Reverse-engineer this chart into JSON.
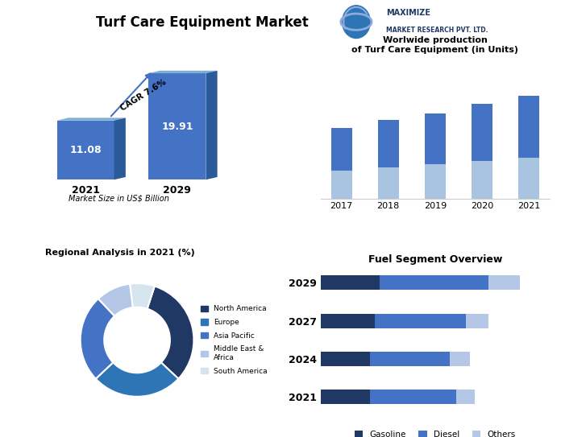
{
  "title": "Turf Care Equipment Market",
  "bg_color": "#ffffff",
  "bar_chart": {
    "categories": [
      "2021",
      "2029"
    ],
    "values": [
      11.08,
      19.91
    ],
    "color": "#4472c4",
    "shadow_color": "#8faadc",
    "xlabel": "Market Size in US$ Billion",
    "cagr_text": "CAGR 7.6%"
  },
  "world_prod": {
    "title": "Worlwide production\nof Turf Care Equipment (in Units)",
    "categories": [
      "2017",
      "2018",
      "2019",
      "2020",
      "2021"
    ],
    "values": [
      0.52,
      0.58,
      0.63,
      0.7,
      0.76
    ],
    "color_top": "#4472c4",
    "color_bottom": "#a8c4e0"
  },
  "donut": {
    "title": "Regional Analysis in 2021 (%)",
    "labels": [
      "North America",
      "Europe",
      "Asia Pacific",
      "Middle East &\nAfrica",
      "South America"
    ],
    "values": [
      32,
      26,
      25,
      10,
      7
    ],
    "colors": [
      "#1f3864",
      "#2e75b6",
      "#4472c4",
      "#b4c7e7",
      "#d6e4f0"
    ]
  },
  "fuel": {
    "title": "Fuel Segment Overview",
    "years": [
      "2021",
      "2024",
      "2027",
      "2029"
    ],
    "gasoline": [
      0.22,
      0.22,
      0.24,
      0.26
    ],
    "diesel": [
      0.38,
      0.35,
      0.4,
      0.48
    ],
    "others": [
      0.08,
      0.09,
      0.1,
      0.14
    ],
    "colors": {
      "gasoline": "#1f3864",
      "diesel": "#4472c4",
      "others": "#b4c7e7"
    },
    "legend_labels": [
      "Gasoline",
      "Diesel",
      "Others"
    ]
  },
  "logo_text1": "MAXIMIZE",
  "logo_text2": "MARKET RESEARCH PVT. LTD.",
  "logo_color": "#1f3864"
}
